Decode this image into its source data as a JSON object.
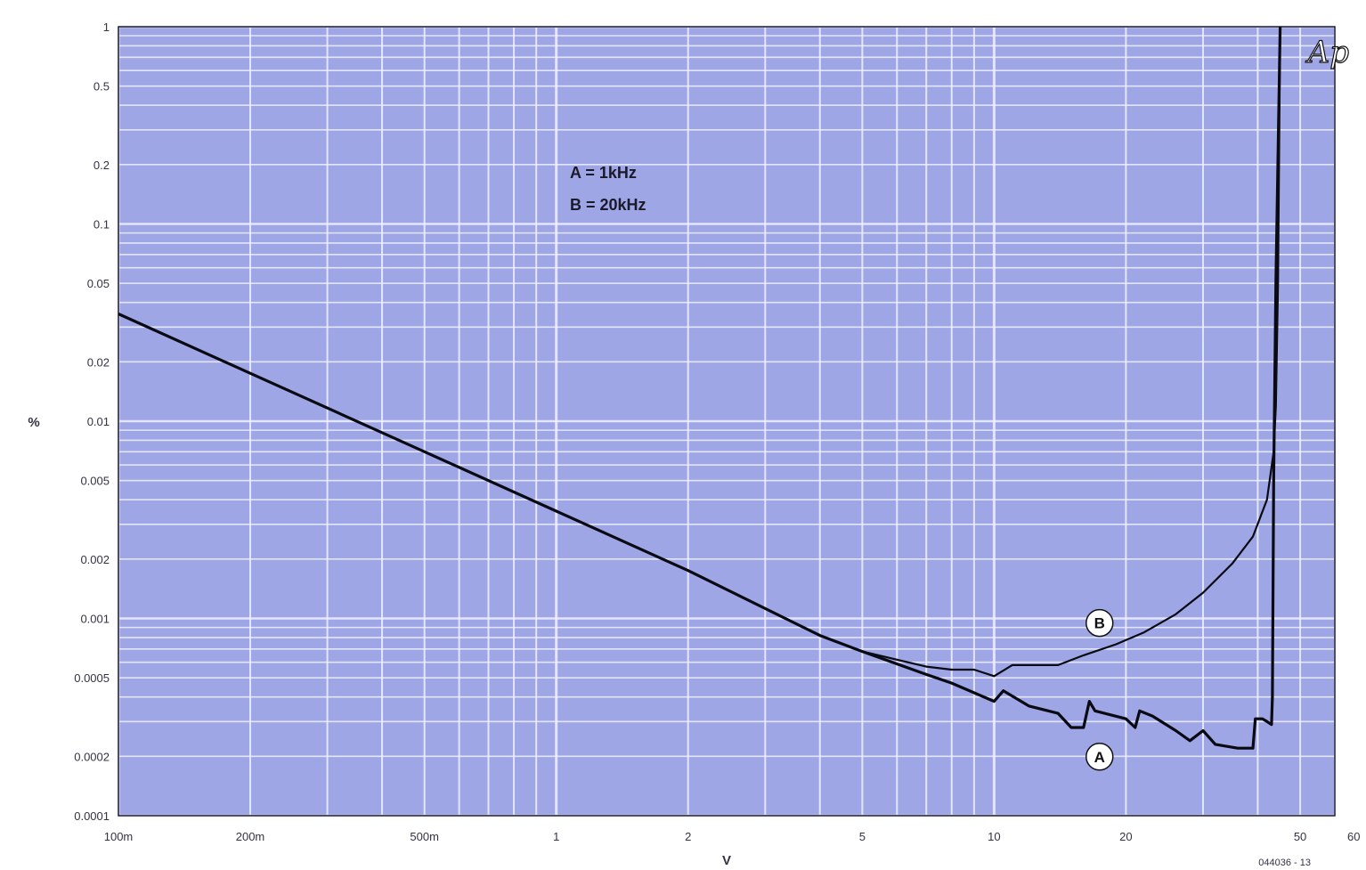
{
  "chart_data": {
    "type": "line",
    "x_scale": "log",
    "y_scale": "log",
    "xlabel": "V",
    "ylabel": "%",
    "xlim": [
      0.1,
      60
    ],
    "ylim": [
      0.0001,
      1
    ],
    "grid": true,
    "x_ticks": [
      {
        "value": 0.1,
        "label": "100m"
      },
      {
        "value": 0.2,
        "label": "200m"
      },
      {
        "value": 0.5,
        "label": "500m"
      },
      {
        "value": 1,
        "label": "1"
      },
      {
        "value": 2,
        "label": "2"
      },
      {
        "value": 5,
        "label": "5"
      },
      {
        "value": 10,
        "label": "10"
      },
      {
        "value": 20,
        "label": "20"
      },
      {
        "value": 50,
        "label": "50"
      },
      {
        "value": 60,
        "label": "60"
      }
    ],
    "y_ticks": [
      {
        "value": 1,
        "label": "1"
      },
      {
        "value": 0.5,
        "label": "0.5"
      },
      {
        "value": 0.2,
        "label": "0.2"
      },
      {
        "value": 0.1,
        "label": "0.1"
      },
      {
        "value": 0.05,
        "label": "0.05"
      },
      {
        "value": 0.02,
        "label": "0.02"
      },
      {
        "value": 0.01,
        "label": "0.01"
      },
      {
        "value": 0.005,
        "label": "0.005"
      },
      {
        "value": 0.002,
        "label": "0.002"
      },
      {
        "value": 0.001,
        "label": "0.001"
      },
      {
        "value": 0.0005,
        "label": "0.0005"
      },
      {
        "value": 0.0002,
        "label": "0.0002"
      },
      {
        "value": 0.0001,
        "label": "0.0001"
      }
    ],
    "legend": {
      "placement": "top-center",
      "entries": [
        "A = 1kHz",
        "B = 20kHz"
      ]
    },
    "series": [
      {
        "name": "A",
        "points": [
          [
            0.1,
            0.035
          ],
          [
            0.2,
            0.0175
          ],
          [
            0.5,
            0.007
          ],
          [
            1,
            0.0035
          ],
          [
            2,
            0.00175
          ],
          [
            4,
            0.00082
          ],
          [
            5,
            0.00068
          ],
          [
            7,
            0.00052
          ],
          [
            8,
            0.00047
          ],
          [
            10,
            0.00038
          ],
          [
            10.5,
            0.00043
          ],
          [
            12,
            0.00036
          ],
          [
            14,
            0.00033
          ],
          [
            15,
            0.00028
          ],
          [
            16,
            0.00028
          ],
          [
            16.5,
            0.00038
          ],
          [
            17,
            0.00034
          ],
          [
            20,
            0.00031
          ],
          [
            21,
            0.00028
          ],
          [
            21.5,
            0.00034
          ],
          [
            23,
            0.00032
          ],
          [
            26,
            0.00027
          ],
          [
            28,
            0.00024
          ],
          [
            30,
            0.00027
          ],
          [
            32,
            0.00023
          ],
          [
            36,
            0.00022
          ],
          [
            38,
            0.00022
          ],
          [
            39,
            0.00022
          ],
          [
            39.5,
            0.00031
          ],
          [
            41,
            0.00031
          ],
          [
            42,
            0.0003
          ],
          [
            43,
            0.00029
          ],
          [
            43.2,
            0.0004
          ],
          [
            43.5,
            0.005
          ],
          [
            44,
            0.05
          ],
          [
            45,
            1
          ]
        ]
      },
      {
        "name": "B",
        "points": [
          [
            0.1,
            0.035
          ],
          [
            0.2,
            0.0175
          ],
          [
            0.5,
            0.007
          ],
          [
            1,
            0.0035
          ],
          [
            2,
            0.00175
          ],
          [
            4,
            0.00082
          ],
          [
            5,
            0.00068
          ],
          [
            7,
            0.00057
          ],
          [
            8,
            0.00055
          ],
          [
            9,
            0.00055
          ],
          [
            10,
            0.00051
          ],
          [
            11,
            0.00058
          ],
          [
            14,
            0.00058
          ],
          [
            16,
            0.00065
          ],
          [
            19,
            0.00074
          ],
          [
            22,
            0.00085
          ],
          [
            26,
            0.00105
          ],
          [
            30,
            0.00135
          ],
          [
            35,
            0.0019
          ],
          [
            39,
            0.0026
          ],
          [
            42,
            0.004
          ],
          [
            43.5,
            0.007
          ],
          [
            44,
            0.012
          ],
          [
            44.5,
            0.05
          ],
          [
            45,
            1
          ]
        ]
      }
    ],
    "callouts": [
      {
        "series": "A",
        "label": "A",
        "x": 16,
        "y": 0.00024
      },
      {
        "series": "B",
        "label": "B",
        "x": 16,
        "y": 0.00082
      }
    ],
    "logo_text": "Ap",
    "figure_id": "044036 - 13"
  }
}
